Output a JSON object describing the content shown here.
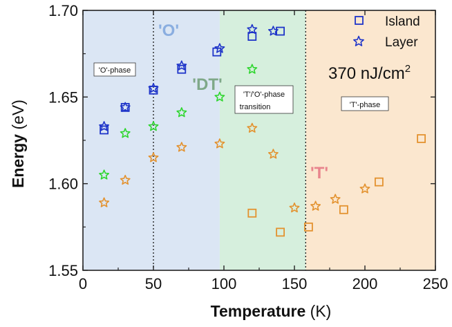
{
  "chart_data": {
    "type": "scatter",
    "xlabel": "Temperature",
    "xlabel_unit": "(K)",
    "ylabel": "Energy",
    "ylabel_unit": "(eV)",
    "xlim": [
      0,
      250
    ],
    "ylim": [
      1.55,
      1.7
    ],
    "x_ticks": [
      "0",
      "50",
      "100",
      "150",
      "200",
      "250"
    ],
    "y_ticks": [
      "1.55",
      "1.60",
      "1.65",
      "1.70"
    ],
    "grid": false,
    "legend_position": "top-right",
    "legend": [
      {
        "label": "Island",
        "marker": "square",
        "color": "#1f35c9"
      },
      {
        "label": "Layer",
        "marker": "star",
        "color": "#1f35c9"
      }
    ],
    "annotations": {
      "fluence_value": "370 nJ/cm",
      "fluence_exponent": "2",
      "o_phase": "'O'-phase",
      "transition_line1": "'T'/'O'-phase",
      "transition_line2": "transition",
      "t_phase": "'T'-phase",
      "region_o": "'O'",
      "region_dt": "'DT'",
      "region_t": "'T'"
    },
    "regions": [
      {
        "name": "O",
        "x": [
          0,
          97
        ],
        "color": "#dbe6f4"
      },
      {
        "name": "DT",
        "x": [
          97,
          158
        ],
        "color": "#d6efdd"
      },
      {
        "name": "T",
        "x": [
          158,
          250
        ],
        "color": "#fbe7cf"
      }
    ],
    "region_label_colors": {
      "region_o": "#8aaee0",
      "region_dt": "#7fa889",
      "region_t": "#e8858d"
    },
    "boundaries": [
      50,
      158
    ],
    "series": [
      {
        "name": "Island",
        "marker": "square",
        "color": "#1f35c9",
        "points": [
          [
            15,
            1.631
          ],
          [
            30,
            1.644
          ],
          [
            50,
            1.654
          ],
          [
            70,
            1.666
          ],
          [
            95,
            1.676
          ],
          [
            120,
            1.685
          ],
          [
            140,
            1.688
          ]
        ]
      },
      {
        "name": "Layer",
        "marker": "star",
        "color": "#1f35c9",
        "points": [
          [
            15,
            1.633
          ],
          [
            30,
            1.644
          ],
          [
            50,
            1.655
          ],
          [
            70,
            1.668
          ],
          [
            97,
            1.678
          ],
          [
            120,
            1.689
          ],
          [
            135,
            1.688
          ]
        ]
      },
      {
        "marker": "star",
        "color": "#2fd62f",
        "points": [
          [
            15,
            1.605
          ],
          [
            30,
            1.629
          ],
          [
            50,
            1.633
          ],
          [
            70,
            1.641
          ],
          [
            97,
            1.65
          ],
          [
            120,
            1.666
          ]
        ]
      },
      {
        "marker": "star",
        "color": "#e3922f",
        "points": [
          [
            15,
            1.589
          ],
          [
            30,
            1.602
          ],
          [
            50,
            1.615
          ],
          [
            70,
            1.621
          ],
          [
            97,
            1.623
          ],
          [
            120,
            1.632
          ],
          [
            135,
            1.617
          ],
          [
            150,
            1.586
          ],
          [
            165,
            1.587
          ],
          [
            179,
            1.591
          ],
          [
            200,
            1.597
          ]
        ]
      },
      {
        "marker": "square",
        "color": "#e3922f",
        "points": [
          [
            120,
            1.583
          ],
          [
            140,
            1.572
          ],
          [
            160,
            1.575
          ],
          [
            185,
            1.585
          ],
          [
            210,
            1.601
          ],
          [
            240,
            1.626
          ]
        ]
      }
    ]
  }
}
